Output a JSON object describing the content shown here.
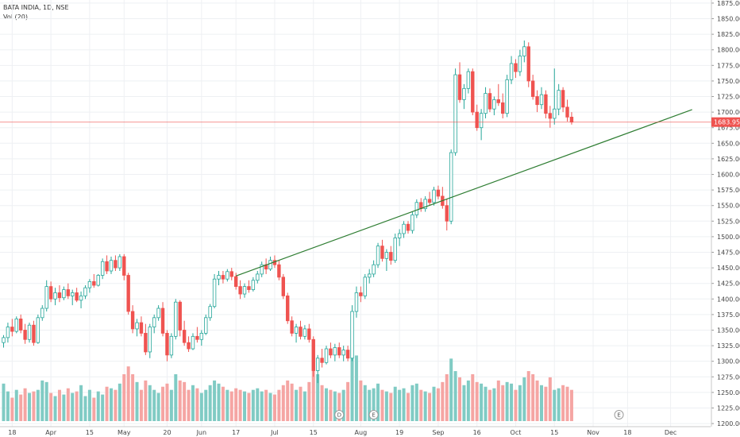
{
  "legend": {
    "title": "BATA INDIA, 1D, NSE",
    "indicator": "Vol (20)"
  },
  "chart_data": {
    "type": "candlestick",
    "symbol": "BATA INDIA",
    "interval": "1D",
    "exchange": "NSE",
    "ylim": [
      1195,
      1880
    ],
    "y_ticks": [
      1875,
      1850,
      1825,
      1800,
      1775,
      1750,
      1725,
      1700,
      1675,
      1650,
      1625,
      1600,
      1575,
      1550,
      1525,
      1500,
      1475,
      1450,
      1425,
      1400,
      1375,
      1350,
      1325,
      1300,
      1275,
      1250,
      1225,
      1200
    ],
    "y_tick_labels": [
      "1875.00",
      "1850.00",
      "1825.00",
      "1800.00",
      "1775.00",
      "1750.00",
      "1725.00",
      "1700.00",
      "1675.00",
      "1650.00",
      "1625.00",
      "1600.00",
      "1575.00",
      "1550.00",
      "1525.00",
      "1500.00",
      "1475.00",
      "1450.00",
      "1425.00",
      "1400.00",
      "1375.00",
      "1350.00",
      "1325.00",
      "1300.00",
      "1275.00",
      "1250.00",
      "1225.00",
      "1200.00"
    ],
    "x_labels": [
      {
        "text": "18",
        "bar": 2
      },
      {
        "text": "Apr",
        "bar": 11
      },
      {
        "text": "15",
        "bar": 20
      },
      {
        "text": "May",
        "bar": 28
      },
      {
        "text": "20",
        "bar": 38
      },
      {
        "text": "Jun",
        "bar": 46
      },
      {
        "text": "17",
        "bar": 54
      },
      {
        "text": "Jul",
        "bar": 63
      },
      {
        "text": "15",
        "bar": 72
      },
      {
        "text": "Aug",
        "bar": 83
      },
      {
        "text": "19",
        "bar": 92
      },
      {
        "text": "Sep",
        "bar": 101
      },
      {
        "text": "16",
        "bar": 110
      },
      {
        "text": "Oct",
        "bar": 119
      },
      {
        "text": "15",
        "bar": 128
      },
      {
        "text": "Nov",
        "bar": 137
      },
      {
        "text": "18",
        "bar": 145
      },
      {
        "text": "Dec",
        "bar": 155
      }
    ],
    "current_price": 1683.95,
    "current_price_label": "1683.95",
    "trendline": {
      "start": {
        "bar": 54,
        "price": 1437
      },
      "end": {
        "bar": 160,
        "price": 1704
      }
    },
    "event_markers": [
      {
        "label": "D",
        "bar": 78
      },
      {
        "label": "E",
        "bar": 86
      },
      {
        "label": "E",
        "bar": 143
      }
    ],
    "up_color": "#26a69a",
    "down_color": "#ef5350",
    "up_volume_color": "#80cbc4",
    "down_volume_color": "#f5a5a3",
    "trendline_color": "#2e7d32",
    "price_line_color": "#ef5350",
    "candles": [
      {
        "o": 1330,
        "h": 1342,
        "l": 1322,
        "c": 1338,
        "v": 240
      },
      {
        "o": 1338,
        "h": 1362,
        "l": 1330,
        "c": 1355,
        "v": 190
      },
      {
        "o": 1355,
        "h": 1368,
        "l": 1340,
        "c": 1348,
        "v": 150
      },
      {
        "o": 1348,
        "h": 1372,
        "l": 1345,
        "c": 1368,
        "v": 200
      },
      {
        "o": 1368,
        "h": 1375,
        "l": 1345,
        "c": 1350,
        "v": 170
      },
      {
        "o": 1350,
        "h": 1360,
        "l": 1328,
        "c": 1335,
        "v": 210
      },
      {
        "o": 1335,
        "h": 1362,
        "l": 1330,
        "c": 1358,
        "v": 180
      },
      {
        "o": 1358,
        "h": 1365,
        "l": 1325,
        "c": 1330,
        "v": 190
      },
      {
        "o": 1330,
        "h": 1375,
        "l": 1328,
        "c": 1370,
        "v": 200
      },
      {
        "o": 1370,
        "h": 1390,
        "l": 1365,
        "c": 1385,
        "v": 260
      },
      {
        "o": 1385,
        "h": 1430,
        "l": 1380,
        "c": 1420,
        "v": 250
      },
      {
        "o": 1420,
        "h": 1428,
        "l": 1395,
        "c": 1400,
        "v": 180
      },
      {
        "o": 1400,
        "h": 1418,
        "l": 1390,
        "c": 1410,
        "v": 160
      },
      {
        "o": 1410,
        "h": 1422,
        "l": 1395,
        "c": 1402,
        "v": 200
      },
      {
        "o": 1402,
        "h": 1420,
        "l": 1398,
        "c": 1415,
        "v": 170
      },
      {
        "o": 1415,
        "h": 1425,
        "l": 1400,
        "c": 1405,
        "v": 210
      },
      {
        "o": 1405,
        "h": 1415,
        "l": 1390,
        "c": 1410,
        "v": 180
      },
      {
        "o": 1410,
        "h": 1418,
        "l": 1395,
        "c": 1398,
        "v": 190
      },
      {
        "o": 1398,
        "h": 1412,
        "l": 1385,
        "c": 1405,
        "v": 230
      },
      {
        "o": 1405,
        "h": 1422,
        "l": 1400,
        "c": 1418,
        "v": 160
      },
      {
        "o": 1418,
        "h": 1432,
        "l": 1410,
        "c": 1428,
        "v": 200
      },
      {
        "o": 1428,
        "h": 1440,
        "l": 1418,
        "c": 1422,
        "v": 150
      },
      {
        "o": 1422,
        "h": 1440,
        "l": 1420,
        "c": 1438,
        "v": 190
      },
      {
        "o": 1438,
        "h": 1465,
        "l": 1432,
        "c": 1460,
        "v": 170
      },
      {
        "o": 1460,
        "h": 1470,
        "l": 1440,
        "c": 1445,
        "v": 220
      },
      {
        "o": 1445,
        "h": 1468,
        "l": 1440,
        "c": 1462,
        "v": 210
      },
      {
        "o": 1462,
        "h": 1470,
        "l": 1445,
        "c": 1450,
        "v": 200
      },
      {
        "o": 1450,
        "h": 1472,
        "l": 1445,
        "c": 1468,
        "v": 240
      },
      {
        "o": 1468,
        "h": 1472,
        "l": 1430,
        "c": 1438,
        "v": 300
      },
      {
        "o": 1438,
        "h": 1442,
        "l": 1375,
        "c": 1380,
        "v": 350
      },
      {
        "o": 1380,
        "h": 1390,
        "l": 1345,
        "c": 1352,
        "v": 300
      },
      {
        "o": 1352,
        "h": 1368,
        "l": 1340,
        "c": 1362,
        "v": 250
      },
      {
        "o": 1362,
        "h": 1372,
        "l": 1340,
        "c": 1345,
        "v": 200
      },
      {
        "o": 1345,
        "h": 1360,
        "l": 1310,
        "c": 1315,
        "v": 260
      },
      {
        "o": 1315,
        "h": 1360,
        "l": 1305,
        "c": 1355,
        "v": 230
      },
      {
        "o": 1355,
        "h": 1375,
        "l": 1345,
        "c": 1370,
        "v": 200
      },
      {
        "o": 1370,
        "h": 1390,
        "l": 1365,
        "c": 1385,
        "v": 180
      },
      {
        "o": 1385,
        "h": 1395,
        "l": 1340,
        "c": 1345,
        "v": 220
      },
      {
        "o": 1345,
        "h": 1350,
        "l": 1300,
        "c": 1310,
        "v": 240
      },
      {
        "o": 1310,
        "h": 1345,
        "l": 1305,
        "c": 1340,
        "v": 200
      },
      {
        "o": 1340,
        "h": 1400,
        "l": 1335,
        "c": 1395,
        "v": 300
      },
      {
        "o": 1395,
        "h": 1398,
        "l": 1340,
        "c": 1350,
        "v": 260
      },
      {
        "o": 1350,
        "h": 1365,
        "l": 1325,
        "c": 1330,
        "v": 250
      },
      {
        "o": 1330,
        "h": 1340,
        "l": 1315,
        "c": 1320,
        "v": 200
      },
      {
        "o": 1320,
        "h": 1345,
        "l": 1318,
        "c": 1340,
        "v": 230
      },
      {
        "o": 1340,
        "h": 1355,
        "l": 1330,
        "c": 1335,
        "v": 210
      },
      {
        "o": 1335,
        "h": 1350,
        "l": 1325,
        "c": 1345,
        "v": 180
      },
      {
        "o": 1345,
        "h": 1375,
        "l": 1342,
        "c": 1370,
        "v": 200
      },
      {
        "o": 1370,
        "h": 1392,
        "l": 1365,
        "c": 1388,
        "v": 230
      },
      {
        "o": 1388,
        "h": 1440,
        "l": 1385,
        "c": 1432,
        "v": 260
      },
      {
        "o": 1432,
        "h": 1445,
        "l": 1422,
        "c": 1438,
        "v": 240
      },
      {
        "o": 1438,
        "h": 1445,
        "l": 1425,
        "c": 1432,
        "v": 220
      },
      {
        "o": 1432,
        "h": 1448,
        "l": 1428,
        "c": 1444,
        "v": 200
      },
      {
        "o": 1444,
        "h": 1450,
        "l": 1430,
        "c": 1436,
        "v": 190
      },
      {
        "o": 1436,
        "h": 1442,
        "l": 1415,
        "c": 1420,
        "v": 210
      },
      {
        "o": 1420,
        "h": 1430,
        "l": 1400,
        "c": 1408,
        "v": 200
      },
      {
        "o": 1408,
        "h": 1425,
        "l": 1402,
        "c": 1420,
        "v": 190
      },
      {
        "o": 1420,
        "h": 1430,
        "l": 1410,
        "c": 1415,
        "v": 180
      },
      {
        "o": 1415,
        "h": 1435,
        "l": 1412,
        "c": 1430,
        "v": 200
      },
      {
        "o": 1430,
        "h": 1445,
        "l": 1425,
        "c": 1440,
        "v": 210
      },
      {
        "o": 1440,
        "h": 1460,
        "l": 1435,
        "c": 1455,
        "v": 190
      },
      {
        "o": 1455,
        "h": 1465,
        "l": 1440,
        "c": 1448,
        "v": 200
      },
      {
        "o": 1448,
        "h": 1468,
        "l": 1445,
        "c": 1462,
        "v": 180
      },
      {
        "o": 1462,
        "h": 1470,
        "l": 1450,
        "c": 1455,
        "v": 170
      },
      {
        "o": 1455,
        "h": 1462,
        "l": 1430,
        "c": 1435,
        "v": 200
      },
      {
        "o": 1435,
        "h": 1440,
        "l": 1400,
        "c": 1405,
        "v": 230
      },
      {
        "o": 1405,
        "h": 1410,
        "l": 1360,
        "c": 1365,
        "v": 260
      },
      {
        "o": 1365,
        "h": 1372,
        "l": 1340,
        "c": 1345,
        "v": 240
      },
      {
        "o": 1345,
        "h": 1360,
        "l": 1330,
        "c": 1355,
        "v": 200
      },
      {
        "o": 1355,
        "h": 1365,
        "l": 1335,
        "c": 1340,
        "v": 220
      },
      {
        "o": 1340,
        "h": 1358,
        "l": 1335,
        "c": 1352,
        "v": 190
      },
      {
        "o": 1352,
        "h": 1360,
        "l": 1330,
        "c": 1335,
        "v": 250
      },
      {
        "o": 1335,
        "h": 1340,
        "l": 1275,
        "c": 1285,
        "v": 420
      },
      {
        "o": 1285,
        "h": 1310,
        "l": 1265,
        "c": 1305,
        "v": 300
      },
      {
        "o": 1305,
        "h": 1320,
        "l": 1290,
        "c": 1298,
        "v": 230
      },
      {
        "o": 1298,
        "h": 1325,
        "l": 1295,
        "c": 1320,
        "v": 210
      },
      {
        "o": 1320,
        "h": 1330,
        "l": 1305,
        "c": 1310,
        "v": 200
      },
      {
        "o": 1310,
        "h": 1328,
        "l": 1300,
        "c": 1322,
        "v": 190
      },
      {
        "o": 1322,
        "h": 1330,
        "l": 1305,
        "c": 1310,
        "v": 180
      },
      {
        "o": 1310,
        "h": 1325,
        "l": 1300,
        "c": 1318,
        "v": 200
      },
      {
        "o": 1318,
        "h": 1325,
        "l": 1300,
        "c": 1305,
        "v": 250
      },
      {
        "o": 1305,
        "h": 1390,
        "l": 1300,
        "c": 1380,
        "v": 600
      },
      {
        "o": 1380,
        "h": 1420,
        "l": 1370,
        "c": 1410,
        "v": 420
      },
      {
        "o": 1410,
        "h": 1420,
        "l": 1395,
        "c": 1405,
        "v": 260
      },
      {
        "o": 1405,
        "h": 1440,
        "l": 1400,
        "c": 1435,
        "v": 230
      },
      {
        "o": 1435,
        "h": 1448,
        "l": 1425,
        "c": 1440,
        "v": 200
      },
      {
        "o": 1440,
        "h": 1462,
        "l": 1435,
        "c": 1455,
        "v": 210
      },
      {
        "o": 1455,
        "h": 1490,
        "l": 1450,
        "c": 1485,
        "v": 240
      },
      {
        "o": 1485,
        "h": 1495,
        "l": 1460,
        "c": 1465,
        "v": 200
      },
      {
        "o": 1465,
        "h": 1480,
        "l": 1445,
        "c": 1475,
        "v": 190
      },
      {
        "o": 1475,
        "h": 1485,
        "l": 1455,
        "c": 1462,
        "v": 180
      },
      {
        "o": 1462,
        "h": 1505,
        "l": 1458,
        "c": 1498,
        "v": 220
      },
      {
        "o": 1498,
        "h": 1512,
        "l": 1485,
        "c": 1505,
        "v": 200
      },
      {
        "o": 1505,
        "h": 1525,
        "l": 1498,
        "c": 1520,
        "v": 210
      },
      {
        "o": 1520,
        "h": 1525,
        "l": 1505,
        "c": 1510,
        "v": 180
      },
      {
        "o": 1510,
        "h": 1540,
        "l": 1505,
        "c": 1535,
        "v": 230
      },
      {
        "o": 1535,
        "h": 1560,
        "l": 1530,
        "c": 1555,
        "v": 240
      },
      {
        "o": 1555,
        "h": 1562,
        "l": 1540,
        "c": 1545,
        "v": 200
      },
      {
        "o": 1545,
        "h": 1565,
        "l": 1540,
        "c": 1560,
        "v": 190
      },
      {
        "o": 1560,
        "h": 1572,
        "l": 1550,
        "c": 1555,
        "v": 180
      },
      {
        "o": 1555,
        "h": 1580,
        "l": 1550,
        "c": 1575,
        "v": 220
      },
      {
        "o": 1575,
        "h": 1582,
        "l": 1560,
        "c": 1565,
        "v": 210
      },
      {
        "o": 1565,
        "h": 1580,
        "l": 1545,
        "c": 1550,
        "v": 250
      },
      {
        "o": 1550,
        "h": 1560,
        "l": 1510,
        "c": 1525,
        "v": 300
      },
      {
        "o": 1525,
        "h": 1640,
        "l": 1520,
        "c": 1635,
        "v": 400
      },
      {
        "o": 1635,
        "h": 1770,
        "l": 1630,
        "c": 1760,
        "v": 320
      },
      {
        "o": 1760,
        "h": 1780,
        "l": 1715,
        "c": 1720,
        "v": 280
      },
      {
        "o": 1720,
        "h": 1745,
        "l": 1705,
        "c": 1738,
        "v": 230
      },
      {
        "o": 1738,
        "h": 1770,
        "l": 1730,
        "c": 1765,
        "v": 260
      },
      {
        "o": 1765,
        "h": 1770,
        "l": 1695,
        "c": 1700,
        "v": 300
      },
      {
        "o": 1700,
        "h": 1712,
        "l": 1670,
        "c": 1675,
        "v": 250
      },
      {
        "o": 1675,
        "h": 1705,
        "l": 1655,
        "c": 1698,
        "v": 240
      },
      {
        "o": 1698,
        "h": 1740,
        "l": 1690,
        "c": 1730,
        "v": 220
      },
      {
        "o": 1730,
        "h": 1738,
        "l": 1700,
        "c": 1705,
        "v": 200
      },
      {
        "o": 1705,
        "h": 1725,
        "l": 1695,
        "c": 1720,
        "v": 210
      },
      {
        "o": 1720,
        "h": 1745,
        "l": 1710,
        "c": 1715,
        "v": 260
      },
      {
        "o": 1715,
        "h": 1730,
        "l": 1690,
        "c": 1698,
        "v": 230
      },
      {
        "o": 1698,
        "h": 1760,
        "l": 1692,
        "c": 1752,
        "v": 250
      },
      {
        "o": 1752,
        "h": 1790,
        "l": 1745,
        "c": 1778,
        "v": 240
      },
      {
        "o": 1778,
        "h": 1785,
        "l": 1755,
        "c": 1765,
        "v": 200
      },
      {
        "o": 1765,
        "h": 1800,
        "l": 1758,
        "c": 1790,
        "v": 230
      },
      {
        "o": 1790,
        "h": 1815,
        "l": 1780,
        "c": 1805,
        "v": 280
      },
      {
        "o": 1805,
        "h": 1812,
        "l": 1740,
        "c": 1750,
        "v": 320
      },
      {
        "o": 1750,
        "h": 1760,
        "l": 1720,
        "c": 1725,
        "v": 300
      },
      {
        "o": 1725,
        "h": 1735,
        "l": 1700,
        "c": 1712,
        "v": 260
      },
      {
        "o": 1712,
        "h": 1740,
        "l": 1705,
        "c": 1728,
        "v": 230
      },
      {
        "o": 1728,
        "h": 1735,
        "l": 1690,
        "c": 1698,
        "v": 220
      },
      {
        "o": 1698,
        "h": 1710,
        "l": 1675,
        "c": 1690,
        "v": 280
      },
      {
        "o": 1690,
        "h": 1770,
        "l": 1680,
        "c": 1705,
        "v": 200
      },
      {
        "o": 1705,
        "h": 1745,
        "l": 1695,
        "c": 1735,
        "v": 210
      },
      {
        "o": 1735,
        "h": 1740,
        "l": 1700,
        "c": 1708,
        "v": 230
      },
      {
        "o": 1708,
        "h": 1720,
        "l": 1685,
        "c": 1692,
        "v": 220
      },
      {
        "o": 1692,
        "h": 1700,
        "l": 1680,
        "c": 1684,
        "v": 200
      }
    ]
  }
}
